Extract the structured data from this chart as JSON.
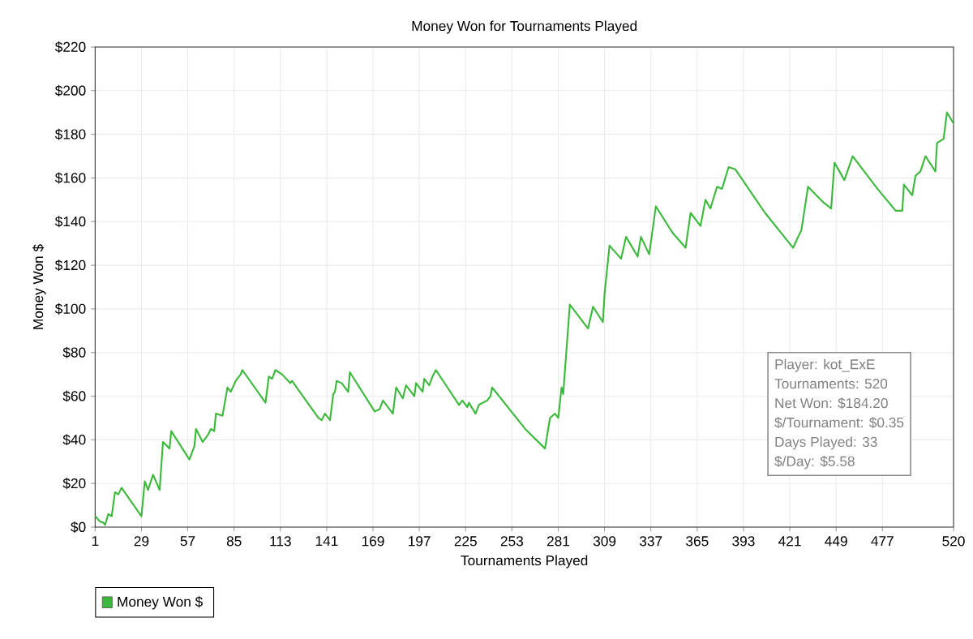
{
  "chart_data": {
    "type": "line",
    "title": "Money Won for Tournaments Played",
    "xlabel": "Tournaments Played",
    "ylabel": "Money Won $",
    "x": [
      1,
      4,
      6,
      7,
      9,
      11,
      13,
      15,
      17,
      29,
      31,
      33,
      36,
      40,
      42,
      46,
      47,
      58,
      61,
      62,
      66,
      69,
      71,
      73,
      74,
      78,
      81,
      83,
      86,
      89,
      90,
      104,
      106,
      108,
      110,
      114,
      119,
      120,
      136,
      138,
      140,
      143,
      145,
      146,
      147,
      150,
      154,
      155,
      170,
      173,
      175,
      181,
      183,
      187,
      189,
      194,
      195,
      199,
      200,
      203,
      205,
      207,
      221,
      223,
      226,
      227,
      231,
      233,
      238,
      240,
      241,
      261,
      273,
      276,
      279,
      281,
      283,
      284,
      288,
      299,
      302,
      308,
      309,
      312,
      319,
      322,
      329,
      331,
      336,
      340,
      350,
      358,
      361,
      367,
      370,
      373,
      377,
      380,
      384,
      388,
      406,
      423,
      426,
      428,
      432,
      441,
      446,
      448,
      454,
      459,
      474,
      485,
      489,
      490,
      495,
      497,
      500,
      503,
      509,
      510,
      514,
      516,
      520
    ],
    "series": [
      {
        "name": "Money Won $",
        "color": "#3cb93c",
        "values": [
          5,
          2.5,
          2,
          1,
          6,
          5,
          16,
          15,
          18,
          5,
          21,
          17,
          24,
          17,
          39,
          36,
          44,
          31,
          37,
          45,
          39,
          42,
          45,
          44,
          52,
          51,
          64,
          62,
          67,
          70,
          72,
          57,
          69,
          68,
          72,
          70,
          66,
          67,
          50,
          49,
          52,
          49,
          61,
          62,
          67,
          66,
          62,
          71,
          53,
          54,
          58,
          52,
          64,
          59,
          65,
          60,
          66,
          62,
          68,
          65,
          69,
          72,
          56,
          58,
          55,
          57,
          52,
          56,
          58,
          60,
          64,
          45,
          36,
          50,
          52,
          50,
          64,
          61,
          102,
          91,
          101,
          94,
          107,
          129,
          123,
          133,
          124,
          133,
          125,
          147,
          135,
          128,
          144,
          138,
          150,
          146,
          156,
          155,
          165,
          164,
          144,
          128,
          133,
          136,
          156,
          149,
          146,
          167,
          159,
          170,
          155,
          145,
          145,
          157,
          152,
          161,
          163,
          170,
          163,
          176,
          178,
          190,
          185
        ]
      }
    ],
    "xlim": [
      1,
      520
    ],
    "xticks": [
      1,
      29,
      57,
      85,
      113,
      141,
      169,
      197,
      225,
      253,
      281,
      309,
      337,
      365,
      393,
      421,
      449,
      477,
      520
    ],
    "ylim": [
      0,
      220
    ],
    "yticks": [
      {
        "value": 0,
        "label": "$0"
      },
      {
        "value": 20,
        "label": "$20"
      },
      {
        "value": 40,
        "label": "$40"
      },
      {
        "value": 60,
        "label": "$60"
      },
      {
        "value": 80,
        "label": "$80"
      },
      {
        "value": 100,
        "label": "$100"
      },
      {
        "value": 120,
        "label": "$120"
      },
      {
        "value": 140,
        "label": "$140"
      },
      {
        "value": 160,
        "label": "$160"
      },
      {
        "value": 180,
        "label": "$180"
      },
      {
        "value": 200,
        "label": "$200"
      },
      {
        "value": 220,
        "label": "$220"
      }
    ],
    "grid": true,
    "legend": "bottom left",
    "line_style": "solid",
    "annotations": [
      "Player: kot_ExE",
      "Tournaments: 520",
      "Net Won: $184.20",
      "$/Tournament: $0.35",
      "Days Played: 33",
      "$/Day: $5.58"
    ]
  }
}
